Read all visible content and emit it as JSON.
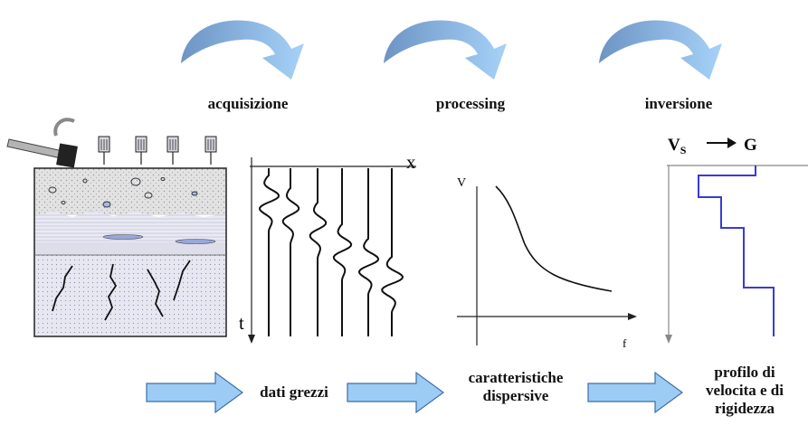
{
  "steps": {
    "step1": "acquisizione",
    "step2": "processing",
    "step3": "inversione"
  },
  "outputs": {
    "raw_data": "dati grezzi",
    "dispersive_line1": "caratteristiche",
    "dispersive_line2": "dispersive",
    "profile_line1": "profilo di",
    "profile_line2": "velocita e di",
    "profile_line3": "rigidezza"
  },
  "axes": {
    "seismogram_x": "x",
    "seismogram_t": "t",
    "dispersion_v": "V",
    "dispersion_f": "f",
    "profile_vs": "V",
    "profile_vs_sub": "S",
    "profile_g": "G"
  },
  "colors": {
    "arrow_light": "#9cccf4",
    "arrow_dark": "#6d94c4",
    "profile_line": "#3a3ad6",
    "ground_top": "#dcdcdc",
    "ground_layer": "#d8d8e8"
  }
}
